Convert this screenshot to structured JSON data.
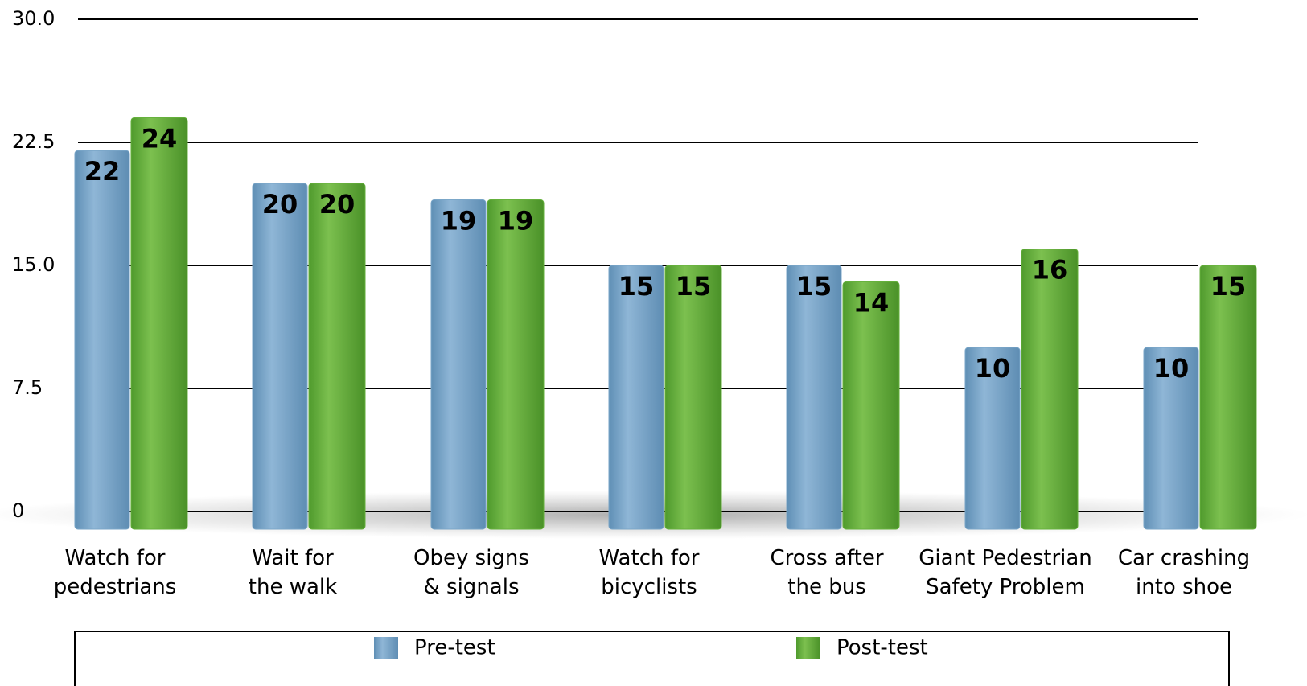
{
  "chart_data": {
    "type": "bar",
    "categories": [
      "Watch for\npedestrians",
      "Wait for\nthe walk",
      "Obey signs\n& signals",
      "Watch for\nbicyclists",
      "Cross after\nthe bus",
      "Giant Pedestrian\nSafety Problem",
      "Car crashing\ninto shoe"
    ],
    "series": [
      {
        "name": "Pre-test",
        "color": "#7aa6c8",
        "values": [
          22,
          20,
          19,
          15,
          15,
          10,
          10
        ]
      },
      {
        "name": "Post-test",
        "color": "#66b13c",
        "values": [
          24,
          20,
          19,
          15,
          14,
          16,
          15
        ]
      }
    ],
    "ylim": [
      0,
      30
    ],
    "yticks": [
      0,
      7.5,
      {
        "value": 15,
        "label": "15.0"
      },
      22.5,
      {
        "value": 30,
        "label": "30.0"
      }
    ],
    "grid": true
  }
}
